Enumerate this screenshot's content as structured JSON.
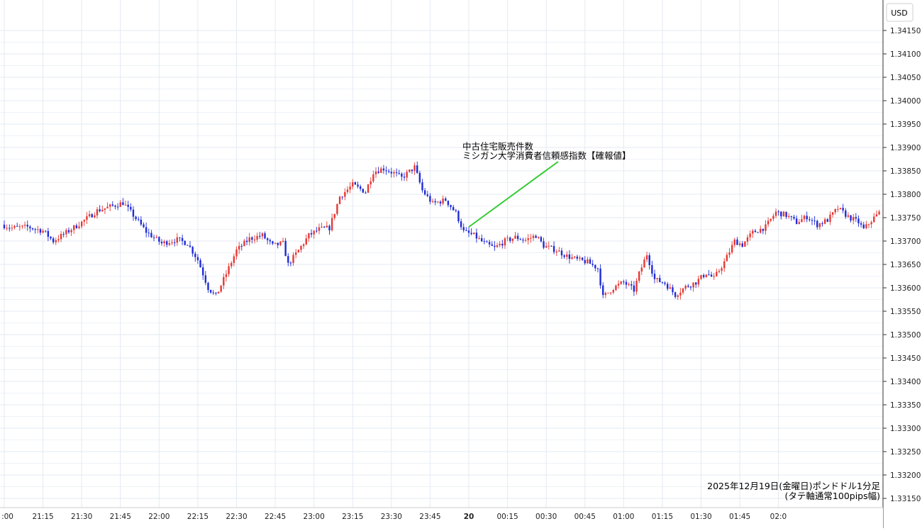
{
  "chart_data": {
    "type": "candlestick",
    "title": "2025年12月19日(金曜日)ポンドドル1分足",
    "subtitle": "(タテ軸通常100pips幅)",
    "currency_label": "USD",
    "ylim": [
      1.3313,
      1.3418
    ],
    "y_ticks": [
      "1.34150",
      "1.34100",
      "1.34050",
      "1.34000",
      "1.33950",
      "1.33900",
      "1.33850",
      "1.33800",
      "1.33750",
      "1.33700",
      "1.33650",
      "1.33600",
      "1.33550",
      "1.33500",
      "1.33450",
      "1.33400",
      "1.33350",
      "1.33300",
      "1.33250",
      "1.33200",
      "1.33150"
    ],
    "x_ticks": [
      ":00",
      "21:15",
      "21:30",
      "21:45",
      "22:00",
      "22:15",
      "22:30",
      "22:45",
      "23:00",
      "23:15",
      "23:30",
      "23:45",
      "20",
      "00:15",
      "00:30",
      "00:45",
      "01:00",
      "01:15",
      "01:30",
      "01:45",
      "02:0"
    ],
    "grid": true,
    "up_color": "#e53935",
    "down_color": "#1e2bd6",
    "annotation": {
      "lines": [
        "中古住宅販売件数",
        "ミシガン大学消費者信頼感指数【確報値】"
      ],
      "marker_time": "00:00",
      "line_color": "#33cc33"
    },
    "keypoints": [
      [
        0,
        1.33735
      ],
      [
        4,
        1.33728
      ],
      [
        10,
        1.3373
      ],
      [
        16,
        1.33722
      ],
      [
        20,
        1.337
      ],
      [
        25,
        1.33718
      ],
      [
        31,
        1.3374
      ],
      [
        37,
        1.33765
      ],
      [
        43,
        1.33775
      ],
      [
        47,
        1.33782
      ],
      [
        51,
        1.33755
      ],
      [
        56,
        1.3372
      ],
      [
        62,
        1.33695
      ],
      [
        68,
        1.33703
      ],
      [
        72,
        1.33695
      ],
      [
        76,
        1.3366
      ],
      [
        80,
        1.336
      ],
      [
        83,
        1.33582
      ],
      [
        87,
        1.3363
      ],
      [
        91,
        1.3368
      ],
      [
        96,
        1.33705
      ],
      [
        101,
        1.33712
      ],
      [
        105,
        1.3369
      ],
      [
        109,
        1.33695
      ],
      [
        111,
        1.3365
      ],
      [
        115,
        1.3368
      ],
      [
        119,
        1.33712
      ],
      [
        123,
        1.33725
      ],
      [
        127,
        1.33728
      ],
      [
        131,
        1.33795
      ],
      [
        136,
        1.3382
      ],
      [
        141,
        1.33805
      ],
      [
        144,
        1.33848
      ],
      [
        148,
        1.33855
      ],
      [
        152,
        1.33845
      ],
      [
        155,
        1.33835
      ],
      [
        160,
        1.33858
      ],
      [
        163,
        1.33808
      ],
      [
        167,
        1.3378
      ],
      [
        172,
        1.33788
      ],
      [
        176,
        1.3376
      ],
      [
        179,
        1.3372
      ],
      [
        183,
        1.33712
      ],
      [
        187,
        1.33695
      ],
      [
        191,
        1.33685
      ],
      [
        195,
        1.337
      ],
      [
        199,
        1.33708
      ],
      [
        203,
        1.33702
      ],
      [
        207,
        1.33712
      ],
      [
        210,
        1.3369
      ],
      [
        215,
        1.3368
      ],
      [
        219,
        1.33668
      ],
      [
        223,
        1.3366
      ],
      [
        227,
        1.33655
      ],
      [
        231,
        1.33642
      ],
      [
        233,
        1.3358
      ],
      [
        237,
        1.336
      ],
      [
        241,
        1.33612
      ],
      [
        245,
        1.33595
      ],
      [
        247,
        1.3363
      ],
      [
        250,
        1.33672
      ],
      [
        253,
        1.33618
      ],
      [
        257,
        1.3361
      ],
      [
        261,
        1.33585
      ],
      [
        265,
        1.33602
      ],
      [
        269,
        1.33612
      ],
      [
        273,
        1.33632
      ],
      [
        276,
        1.3362
      ],
      [
        280,
        1.33655
      ],
      [
        284,
        1.337
      ],
      [
        287,
        1.33692
      ],
      [
        291,
        1.33718
      ],
      [
        296,
        1.3373
      ],
      [
        300,
        1.33762
      ],
      [
        304,
        1.33755
      ],
      [
        308,
        1.3374
      ],
      [
        312,
        1.33752
      ],
      [
        316,
        1.33735
      ],
      [
        320,
        1.33745
      ],
      [
        324,
        1.3377
      ],
      [
        328,
        1.33752
      ],
      [
        332,
        1.3374
      ],
      [
        334,
        1.33725
      ],
      [
        338,
        1.3375
      ],
      [
        342,
        1.3377
      ]
    ]
  }
}
